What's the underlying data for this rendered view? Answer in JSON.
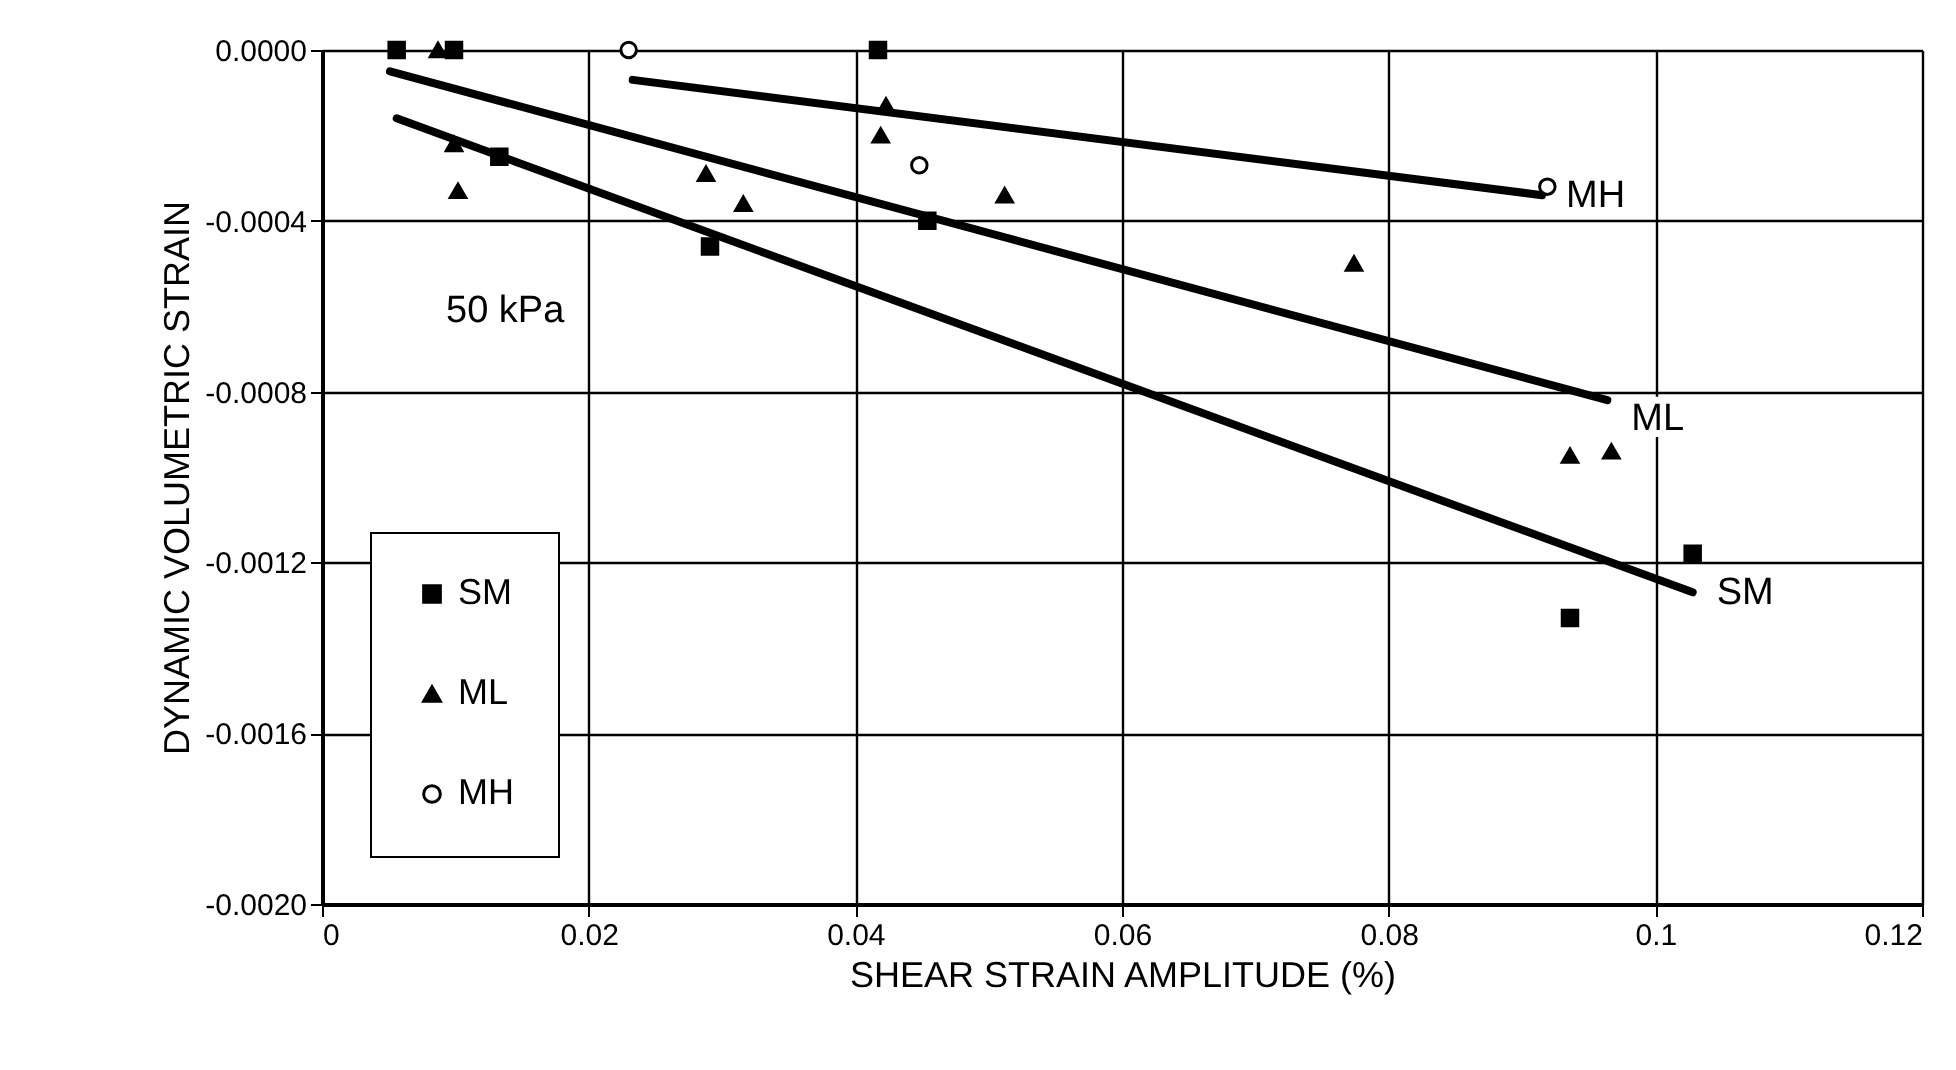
{
  "chart_data": {
    "type": "scatter",
    "xlabel": "SHEAR STRAIN AMPLITUDE (%)",
    "ylabel": "DYNAMIC VOLUMETRIC STRAIN",
    "xlim": [
      0,
      0.12
    ],
    "xticks": [
      0,
      0.02,
      0.04,
      0.06,
      0.08,
      0.1,
      0.12
    ],
    "ylim": [
      -0.002,
      0
    ],
    "yticks": [
      {
        "value": 0,
        "label": "0.0000"
      },
      -0.0004,
      -0.0008,
      -0.0012,
      -0.0016,
      {
        "value": -0.002,
        "label": "-0.0020"
      }
    ],
    "grid": true,
    "legend": "bottom left",
    "annotations": [
      "50 kPa"
    ],
    "series": [
      {
        "name": "SM",
        "marker": "square",
        "color": "#000000",
        "x": [
          0.0056,
          0.0099,
          0.0133,
          0.0291,
          0.0417,
          0.0454,
          0.0936,
          0.1028
        ],
        "values": [
          0,
          0,
          -0.00025,
          -0.00046,
          0,
          -0.0004,
          -0.00133,
          -0.00118
        ]
      },
      {
        "name": "ML",
        "marker": "triangle",
        "color": "#000000",
        "x": [
          0.0087,
          0.0099,
          0.0102,
          0.0288,
          0.0316,
          0.0419,
          0.0423,
          0.0512,
          0.0774,
          0.0936,
          0.0967
        ],
        "values": [
          0,
          -0.00022,
          -0.00033,
          -0.00029,
          -0.00036,
          -0.0002,
          -0.00013,
          -0.00034,
          -0.0005,
          -0.00095,
          -0.00094
        ]
      },
      {
        "name": "MH",
        "marker": "circle",
        "color": "#000000",
        "x": [
          0.023,
          0.0448,
          0.0919
        ],
        "values": [
          0,
          -0.00027,
          -0.00032
        ]
      },
      {
        "name": "MH",
        "type": "line",
        "color": "#000000",
        "x": [
          0.0233,
          0.0915
        ],
        "values": [
          -7e-05,
          -0.00034
        ]
      },
      {
        "name": "ML",
        "type": "line",
        "color": "#000000",
        "x": [
          0.0051,
          0.0964
        ],
        "values": [
          -5e-05,
          -0.00082
        ]
      },
      {
        "name": "SM",
        "type": "line",
        "color": "#000000",
        "x": [
          0.0056,
          0.1028
        ],
        "values": [
          -0.00016,
          -0.00127
        ]
      }
    ]
  }
}
